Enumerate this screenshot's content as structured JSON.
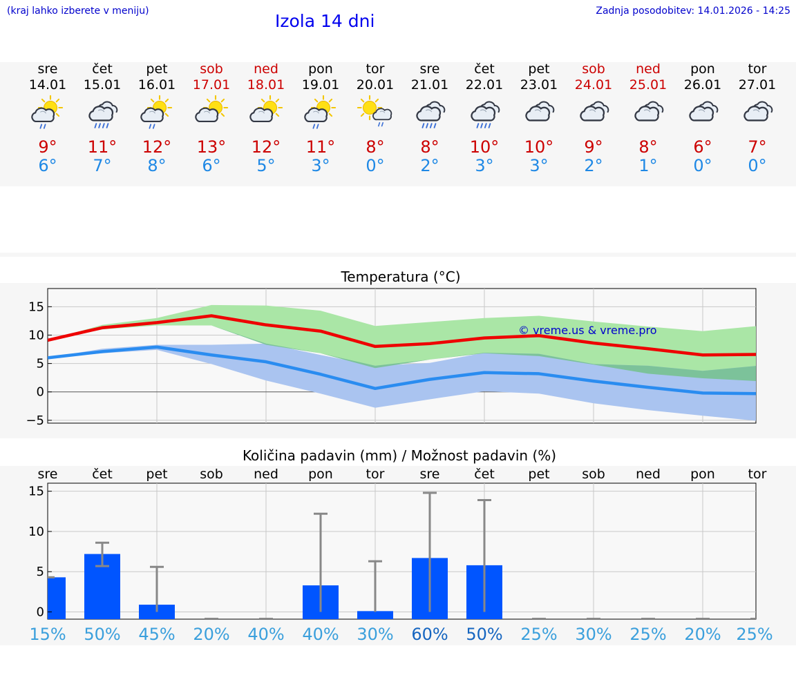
{
  "header": {
    "location_hint": "(kraj lahko izberete v meniju)",
    "title": "Izola 14 dni",
    "updated": "Zadnja posodobitev: 14.01.2026 - 14:25"
  },
  "colors": {
    "weekday": "#000000",
    "weekend": "#cc0000",
    "tmax": "#cc0000",
    "tmin": "#1e88e5",
    "green_band": "#aae6a6",
    "blue_band": "#aac4f0",
    "overlap_band": "#7cc29a",
    "max_line": "#ee0000",
    "min_line": "#2a8cf0",
    "bar": "#0055ff",
    "errbar": "#888888",
    "prob_dark": "#1565c0",
    "prob_light": "#3a9fdc",
    "copyright": "#0000cc"
  },
  "chart_data": [
    {
      "type": "table",
      "name": "daily_forecast",
      "days": [
        {
          "dow": "sre",
          "date": "14.01",
          "weekend": false,
          "icon": "sun-cloud-rain-icon",
          "tmax": "9°",
          "tmin": "6°"
        },
        {
          "dow": "čet",
          "date": "15.01",
          "weekend": false,
          "icon": "cloud-rain-icon",
          "tmax": "11°",
          "tmin": "7°"
        },
        {
          "dow": "pet",
          "date": "16.01",
          "weekend": false,
          "icon": "sun-cloud-rain-icon",
          "tmax": "12°",
          "tmin": "8°"
        },
        {
          "dow": "sob",
          "date": "17.01",
          "weekend": true,
          "icon": "sun-cloud-icon",
          "tmax": "13°",
          "tmin": "6°"
        },
        {
          "dow": "ned",
          "date": "18.01",
          "weekend": true,
          "icon": "sun-cloud-icon",
          "tmax": "12°",
          "tmin": "5°"
        },
        {
          "dow": "pon",
          "date": "19.01",
          "weekend": false,
          "icon": "sun-cloud-rain-icon",
          "tmax": "11°",
          "tmin": "3°"
        },
        {
          "dow": "tor",
          "date": "20.01",
          "weekend": false,
          "icon": "sun-small-cloud-rain-icon",
          "tmax": "8°",
          "tmin": "0°"
        },
        {
          "dow": "sre",
          "date": "21.01",
          "weekend": false,
          "icon": "cloud-rain-icon",
          "tmax": "8°",
          "tmin": "2°"
        },
        {
          "dow": "čet",
          "date": "22.01",
          "weekend": false,
          "icon": "cloud-rain-icon",
          "tmax": "10°",
          "tmin": "3°"
        },
        {
          "dow": "pet",
          "date": "23.01",
          "weekend": false,
          "icon": "cloud-icon",
          "tmax": "10°",
          "tmin": "3°"
        },
        {
          "dow": "sob",
          "date": "24.01",
          "weekend": true,
          "icon": "cloud-icon",
          "tmax": "9°",
          "tmin": "2°"
        },
        {
          "dow": "ned",
          "date": "25.01",
          "weekend": true,
          "icon": "cloud-icon",
          "tmax": "8°",
          "tmin": "1°"
        },
        {
          "dow": "pon",
          "date": "26.01",
          "weekend": false,
          "icon": "cloud-icon",
          "tmax": "6°",
          "tmin": "0°"
        },
        {
          "dow": "tor",
          "date": "27.01",
          "weekend": false,
          "icon": "cloud-icon",
          "tmax": "7°",
          "tmin": "0°"
        }
      ]
    },
    {
      "type": "line",
      "name": "temperature",
      "title": "Temperatura (°C)",
      "copyright": "© vreme.us & vreme.pro",
      "x": [
        0,
        1,
        2,
        3,
        4,
        5,
        6,
        7,
        8,
        9,
        10,
        11,
        12,
        13
      ],
      "ylim": [
        -5.5,
        18.2
      ],
      "yticks": [
        15,
        10,
        5,
        0,
        -5
      ],
      "ytick_labels": [
        "15",
        "10",
        "5",
        "0",
        "−5"
      ],
      "series": [
        {
          "name": "max",
          "values": [
            9.1,
            11.3,
            12.2,
            13.4,
            11.8,
            10.7,
            8.0,
            8.5,
            9.5,
            9.9,
            8.6,
            7.6,
            6.5,
            6.6
          ]
        },
        {
          "name": "max_low",
          "values": [
            9.1,
            11.0,
            11.7,
            11.7,
            8.3,
            6.8,
            4.2,
            5.7,
            6.8,
            6.3,
            4.8,
            3.2,
            2.4,
            1.9
          ]
        },
        {
          "name": "max_high",
          "values": [
            9.1,
            11.8,
            13.0,
            15.3,
            15.2,
            14.3,
            11.6,
            12.3,
            13.0,
            13.4,
            12.4,
            11.5,
            10.7,
            11.6
          ]
        },
        {
          "name": "min",
          "values": [
            6.0,
            7.1,
            7.9,
            6.5,
            5.3,
            3.1,
            0.6,
            2.2,
            3.4,
            3.2,
            1.9,
            0.8,
            -0.2,
            -0.3
          ]
        },
        {
          "name": "min_low",
          "values": [
            6.0,
            6.8,
            7.4,
            4.9,
            2.0,
            -0.3,
            -2.8,
            -1.3,
            0.1,
            -0.3,
            -2.0,
            -3.2,
            -4.2,
            -5.1
          ]
        },
        {
          "name": "min_high",
          "values": [
            6.0,
            7.6,
            8.3,
            8.3,
            8.5,
            6.5,
            4.6,
            5.1,
            6.9,
            6.7,
            4.9,
            4.6,
            3.7,
            4.6
          ]
        }
      ]
    },
    {
      "type": "bar",
      "name": "precipitation",
      "title": "Količina padavin (mm) / Možnost padavin (%)",
      "categories": [
        "sre",
        "čet",
        "pet",
        "sob",
        "ned",
        "pon",
        "tor",
        "sre",
        "čet",
        "pet",
        "sob",
        "ned",
        "pon",
        "tor"
      ],
      "values": [
        4.3,
        7.2,
        0.9,
        0,
        0,
        3.3,
        0.1,
        6.7,
        5.8,
        0,
        0,
        0,
        0,
        0
      ],
      "err_low": [
        4.3,
        5.7,
        0,
        0,
        0,
        0,
        0,
        0,
        0,
        0,
        0,
        0,
        0,
        0
      ],
      "err_high": [
        4.3,
        8.6,
        5.6,
        0,
        0,
        12.2,
        6.3,
        14.8,
        13.9,
        0,
        0,
        0,
        0,
        0
      ],
      "probability": [
        "15%",
        "50%",
        "45%",
        "20%",
        "40%",
        "40%",
        "30%",
        "60%",
        "50%",
        "25%",
        "30%",
        "25%",
        "20%",
        "25%"
      ],
      "probability_emphasis": [
        false,
        false,
        false,
        false,
        false,
        false,
        false,
        true,
        true,
        false,
        false,
        false,
        false,
        false
      ],
      "ylim": [
        -0.9,
        16.0
      ],
      "yticks": [
        15,
        10,
        5,
        0
      ],
      "ytick_labels": [
        "15",
        "10",
        "5",
        "0"
      ]
    }
  ]
}
